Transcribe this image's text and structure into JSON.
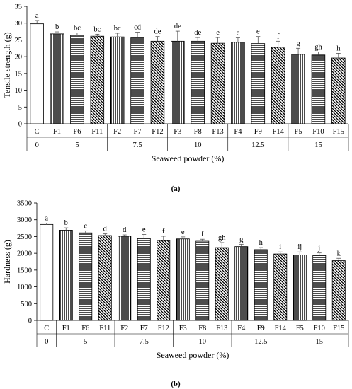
{
  "chart_data": [
    {
      "type": "bar",
      "panel_label": "(a)",
      "ylabel": "Tensile strength (g)",
      "xlabel": "Seaweed powder (%)",
      "ylim": [
        0,
        35
      ],
      "yticks": [
        "0",
        "5",
        "10",
        "15",
        "20",
        "25",
        "30",
        "35"
      ],
      "categories": [
        "C",
        "F1",
        "F6",
        "F11",
        "F2",
        "F7",
        "F12",
        "F3",
        "F8",
        "F13",
        "F4",
        "F9",
        "F14",
        "F5",
        "F10",
        "F15"
      ],
      "values": [
        29.8,
        26.8,
        26.3,
        26.1,
        25.9,
        25.6,
        24.6,
        24.6,
        24.6,
        24.0,
        24.3,
        23.9,
        22.8,
        20.7,
        20.5,
        19.6
      ],
      "errors": [
        1.0,
        0.6,
        0.8,
        0.6,
        1.1,
        1.7,
        1.4,
        3.0,
        1.1,
        1.7,
        1.3,
        2.1,
        1.8,
        1.8,
        0.9,
        1.4
      ],
      "letters": [
        "a",
        "b",
        "bc",
        "bc",
        "bc",
        "cd",
        "de",
        "de",
        "de",
        "e",
        "e",
        "e",
        "f",
        "g",
        "gh",
        "h"
      ],
      "patterns": [
        "open",
        "vertical",
        "horizontal",
        "diagonal",
        "vertical",
        "horizontal",
        "diagonal",
        "vertical",
        "horizontal",
        "diagonal",
        "vertical",
        "horizontal",
        "diagonal",
        "vertical",
        "horizontal",
        "diagonal"
      ],
      "groups": [
        {
          "label": "0",
          "count": 1
        },
        {
          "label": "5",
          "count": 3
        },
        {
          "label": "7.5",
          "count": 3
        },
        {
          "label": "10",
          "count": 3
        },
        {
          "label": "12.5",
          "count": 3
        },
        {
          "label": "15",
          "count": 3
        }
      ]
    },
    {
      "type": "bar",
      "panel_label": "(b)",
      "ylabel": "Hardness (g)",
      "xlabel": "Seaweed powder (%)",
      "ylim": [
        0,
        3500
      ],
      "yticks": [
        "0",
        "500",
        "1000",
        "1500",
        "2000",
        "2500",
        "3000",
        "3500"
      ],
      "categories": [
        "C",
        "F1",
        "F6",
        "F11",
        "F2",
        "F7",
        "F12",
        "F3",
        "F8",
        "F13",
        "F4",
        "F9",
        "F14",
        "F5",
        "F10",
        "F15"
      ],
      "values": [
        2860,
        2690,
        2610,
        2530,
        2510,
        2440,
        2380,
        2430,
        2360,
        2170,
        2200,
        2110,
        1980,
        1950,
        1930,
        1780
      ],
      "errors": [
        40,
        70,
        60,
        50,
        40,
        120,
        130,
        60,
        60,
        150,
        70,
        60,
        60,
        90,
        80,
        70
      ],
      "letters": [
        "a",
        "b",
        "c",
        "d",
        "d",
        "e",
        "f",
        "e",
        "f",
        "gh",
        "g",
        "h",
        "i",
        "ij",
        "j",
        "k"
      ],
      "patterns": [
        "open",
        "vertical",
        "horizontal",
        "diagonal",
        "vertical",
        "horizontal",
        "diagonal",
        "vertical",
        "horizontal",
        "diagonal",
        "vertical",
        "horizontal",
        "diagonal",
        "vertical",
        "horizontal",
        "diagonal"
      ],
      "groups": [
        {
          "label": "0",
          "count": 1
        },
        {
          "label": "5",
          "count": 3
        },
        {
          "label": "7.5",
          "count": 3
        },
        {
          "label": "10",
          "count": 3
        },
        {
          "label": "12.5",
          "count": 3
        },
        {
          "label": "15",
          "count": 3
        }
      ]
    }
  ]
}
